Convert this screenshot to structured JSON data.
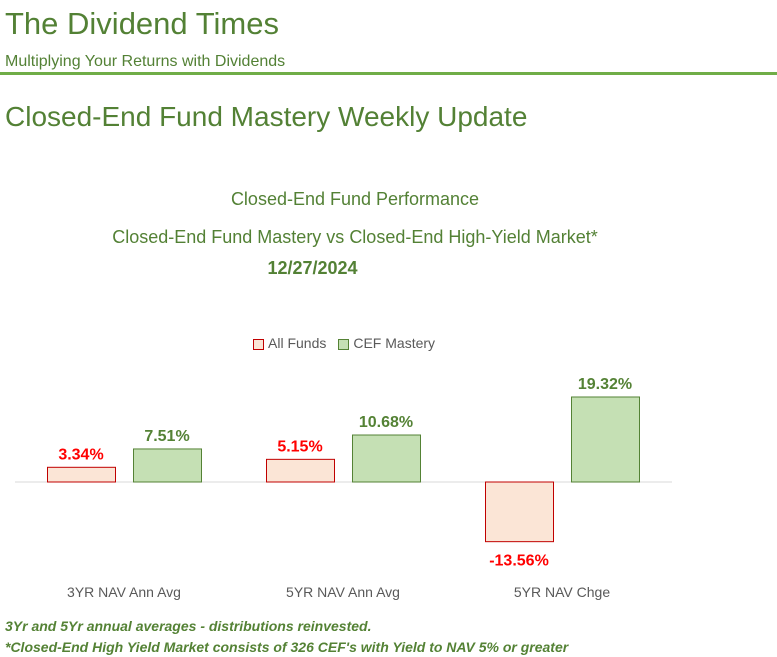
{
  "header": {
    "title": "The Dividend Times",
    "subtitle": "Multiplying Your Returns with Dividends"
  },
  "heading": "Closed-End Fund Mastery Weekly Update",
  "colors": {
    "all_funds_fill": "#fbe5d6",
    "all_funds_border": "#c00000",
    "all_funds_label": "#ff0000",
    "mastery_fill": "#c5e0b4",
    "mastery_border": "#548235",
    "mastery_label": "#548235"
  },
  "chart_data": {
    "type": "bar",
    "title": "Closed-End Fund Performance",
    "subtitle": "Closed-End Fund Mastery vs Closed-End High-Yield Market*",
    "date": "12/27/2024",
    "categories": [
      "3YR NAV Ann Avg",
      "5YR NAV Ann Avg",
      "5YR NAV Chge"
    ],
    "series": [
      {
        "name": "All Funds",
        "values": [
          3.34,
          5.15,
          -13.56
        ],
        "labels": [
          "3.34%",
          "5.15%",
          "-13.56%"
        ]
      },
      {
        "name": "CEF Mastery",
        "values": [
          7.51,
          10.68,
          19.32
        ],
        "labels": [
          "7.51%",
          "10.68%",
          "19.32%"
        ]
      }
    ],
    "legend": "top",
    "grid": false,
    "unit": "%"
  },
  "notes": [
    "3Yr and 5Yr annual averages - distributions reinvested.",
    "*Closed-End High Yield Market consists of 326 CEF's with Yield to NAV 5% or greater"
  ]
}
